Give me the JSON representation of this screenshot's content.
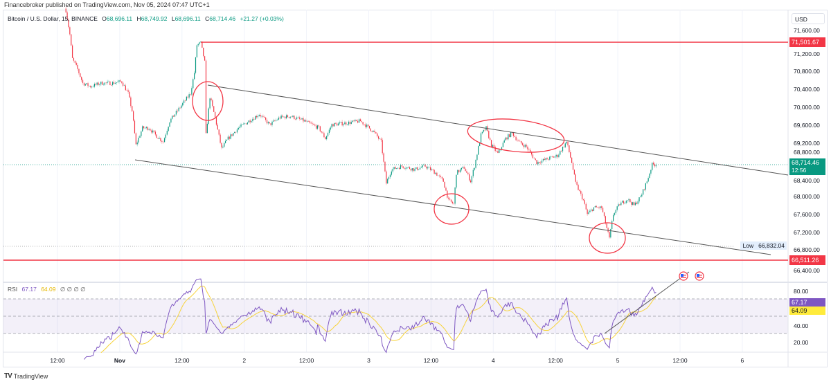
{
  "publisher_line": "Financebroker published on TradingView.com, Nov 05, 2024 07:47 UTC+1",
  "legend": {
    "symbol": "Bitcoin / U.S. Dollar, 15, BINANCE",
    "open_label": "O",
    "open": "68,696.11",
    "high_label": "H",
    "high": "68,749.92",
    "low_label": "L",
    "low": "68,696.11",
    "close_label": "C",
    "close": "68,714.46",
    "change": "+21.27 (+0.03%)"
  },
  "currency": "USD",
  "price_axis": [
    "71,600.00",
    "71,200.00",
    "70,800.00",
    "70,400.00",
    "70,000.00",
    "69,600.00",
    "69,200.00",
    "68,800.00",
    "68,400.00",
    "68,000.00",
    "67,600.00",
    "67,200.00",
    "66,800.00",
    "66,400.00"
  ],
  "badges": {
    "resistance": "71,501.67",
    "support": "66,511.26",
    "last_price": "68,714.46",
    "countdown": "12:56",
    "low_label": "Low",
    "low_value": "66,832.04"
  },
  "rsi": {
    "label": "RSI",
    "value": "67.17",
    "ma_value": "64.09",
    "extra": "∅ ∅ ∅ ∅",
    "axis": [
      "80.00",
      "40.00",
      "20.00"
    ]
  },
  "time_axis": [
    {
      "label": "12:00",
      "bold": false
    },
    {
      "label": "Nov",
      "bold": true
    },
    {
      "label": "12:00",
      "bold": false
    },
    {
      "label": "2",
      "bold": false
    },
    {
      "label": "12:00",
      "bold": false
    },
    {
      "label": "3",
      "bold": false
    },
    {
      "label": "12:00",
      "bold": false
    },
    {
      "label": "4",
      "bold": false
    },
    {
      "label": "12:00",
      "bold": false
    },
    {
      "label": "5",
      "bold": false
    },
    {
      "label": "12:00",
      "bold": false
    },
    {
      "label": "6",
      "bold": false
    }
  ],
  "footer_brand": "TradingView",
  "colors": {
    "up": "#089981",
    "down": "#f23645",
    "rsi": "#7e57c2",
    "rsi_ma": "#f7d33a",
    "drawing": "#f23645"
  },
  "chart_data": {
    "type": "candlestick",
    "interval": "15",
    "price_path": [
      [
        "2024-10-31T13:45",
        72170
      ],
      [
        "2024-10-31T14:30",
        71630
      ],
      [
        "2024-10-31T15:00",
        71085
      ],
      [
        "2024-10-31T16:00",
        70850
      ],
      [
        "2024-10-31T17:00",
        70540
      ],
      [
        "2024-10-31T18:30",
        70465
      ],
      [
        "2024-10-31T20:30",
        70540
      ],
      [
        "2024-10-31T22:30",
        70540
      ],
      [
        "2024-11-01T00:30",
        70575
      ],
      [
        "2024-11-01T01:45",
        70310
      ],
      [
        "2024-11-01T02:30",
        69920
      ],
      [
        "2024-11-01T03:15",
        69150
      ],
      [
        "2024-11-01T04:30",
        69535
      ],
      [
        "2024-11-01T05:45",
        69535
      ],
      [
        "2024-11-01T07:00",
        69380
      ],
      [
        "2024-11-01T08:30",
        69225
      ],
      [
        "2024-11-01T09:45",
        69690
      ],
      [
        "2024-11-01T11:45",
        70000
      ],
      [
        "2024-11-01T13:45",
        70310
      ],
      [
        "2024-11-01T14:30",
        70775
      ],
      [
        "2024-11-01T15:00",
        71395
      ],
      [
        "2024-11-01T15:45",
        71440
      ],
      [
        "2024-11-01T16:30",
        71010
      ],
      [
        "2024-11-01T16:45",
        69380
      ],
      [
        "2024-11-01T17:30",
        70230
      ],
      [
        "2024-11-01T18:30",
        69770
      ],
      [
        "2024-11-01T19:45",
        69070
      ],
      [
        "2024-11-01T21:00",
        69300
      ],
      [
        "2024-11-01T23:00",
        69535
      ],
      [
        "2024-11-02T01:00",
        69690
      ],
      [
        "2024-11-02T03:00",
        69845
      ],
      [
        "2024-11-02T05:00",
        69610
      ],
      [
        "2024-11-02T07:00",
        69770
      ],
      [
        "2024-11-02T09:00",
        69800
      ],
      [
        "2024-11-02T11:45",
        69690
      ],
      [
        "2024-11-02T14:30",
        69535
      ],
      [
        "2024-11-02T15:45",
        69300
      ],
      [
        "2024-11-02T17:00",
        69610
      ],
      [
        "2024-11-02T19:45",
        69645
      ],
      [
        "2024-11-02T22:30",
        69690
      ],
      [
        "2024-11-03T01:00",
        69460
      ],
      [
        "2024-11-03T02:30",
        69225
      ],
      [
        "2024-11-03T03:30",
        68295
      ],
      [
        "2024-11-03T04:30",
        68605
      ],
      [
        "2024-11-03T06:30",
        68680
      ],
      [
        "2024-11-03T09:00",
        68605
      ],
      [
        "2024-11-03T11:00",
        68680
      ],
      [
        "2024-11-03T13:00",
        68530
      ],
      [
        "2024-11-03T14:30",
        68340
      ],
      [
        "2024-11-03T15:30",
        67910
      ],
      [
        "2024-11-03T16:30",
        67830
      ],
      [
        "2024-11-03T17:00",
        68530
      ],
      [
        "2024-11-03T18:30",
        68650
      ],
      [
        "2024-11-03T19:45",
        68340
      ],
      [
        "2024-11-03T20:30",
        68680
      ],
      [
        "2024-11-03T21:45",
        69380
      ],
      [
        "2024-11-03T22:45",
        69535
      ],
      [
        "2024-11-03T23:45",
        69150
      ],
      [
        "2024-11-04T01:00",
        68960
      ],
      [
        "2024-11-04T02:30",
        69300
      ],
      [
        "2024-11-04T03:45",
        69425
      ],
      [
        "2024-11-04T05:00",
        69225
      ],
      [
        "2024-11-04T06:30",
        69115
      ],
      [
        "2024-11-04T08:30",
        68760
      ],
      [
        "2024-11-04T10:30",
        68840
      ],
      [
        "2024-11-04T12:30",
        68915
      ],
      [
        "2024-11-04T14:15",
        69225
      ],
      [
        "2024-11-04T15:15",
        68760
      ],
      [
        "2024-11-04T16:00",
        68295
      ],
      [
        "2024-11-04T17:30",
        67910
      ],
      [
        "2024-11-04T18:15",
        67600
      ],
      [
        "2024-11-04T19:30",
        67750
      ],
      [
        "2024-11-04T21:00",
        67750
      ],
      [
        "2024-11-04T22:00",
        67290
      ],
      [
        "2024-11-04T22:30",
        67055
      ],
      [
        "2024-11-04T23:15",
        67600
      ],
      [
        "2024-11-05T00:30",
        67830
      ],
      [
        "2024-11-05T02:00",
        67940
      ],
      [
        "2024-11-05T03:15",
        67800
      ],
      [
        "2024-11-05T04:30",
        67985
      ],
      [
        "2024-11-05T05:45",
        68340
      ],
      [
        "2024-11-05T06:45",
        68715
      ],
      [
        "2024-11-05T07:30",
        68714.46
      ]
    ],
    "horizontal_levels": [
      71501.67,
      66511.26
    ],
    "low": 66832.04,
    "last": 68714.46,
    "ylim": [
      66300,
      72200
    ],
    "rsi_levels": [
      70,
      50,
      30
    ],
    "rsi_ylim": [
      10,
      90
    ]
  }
}
